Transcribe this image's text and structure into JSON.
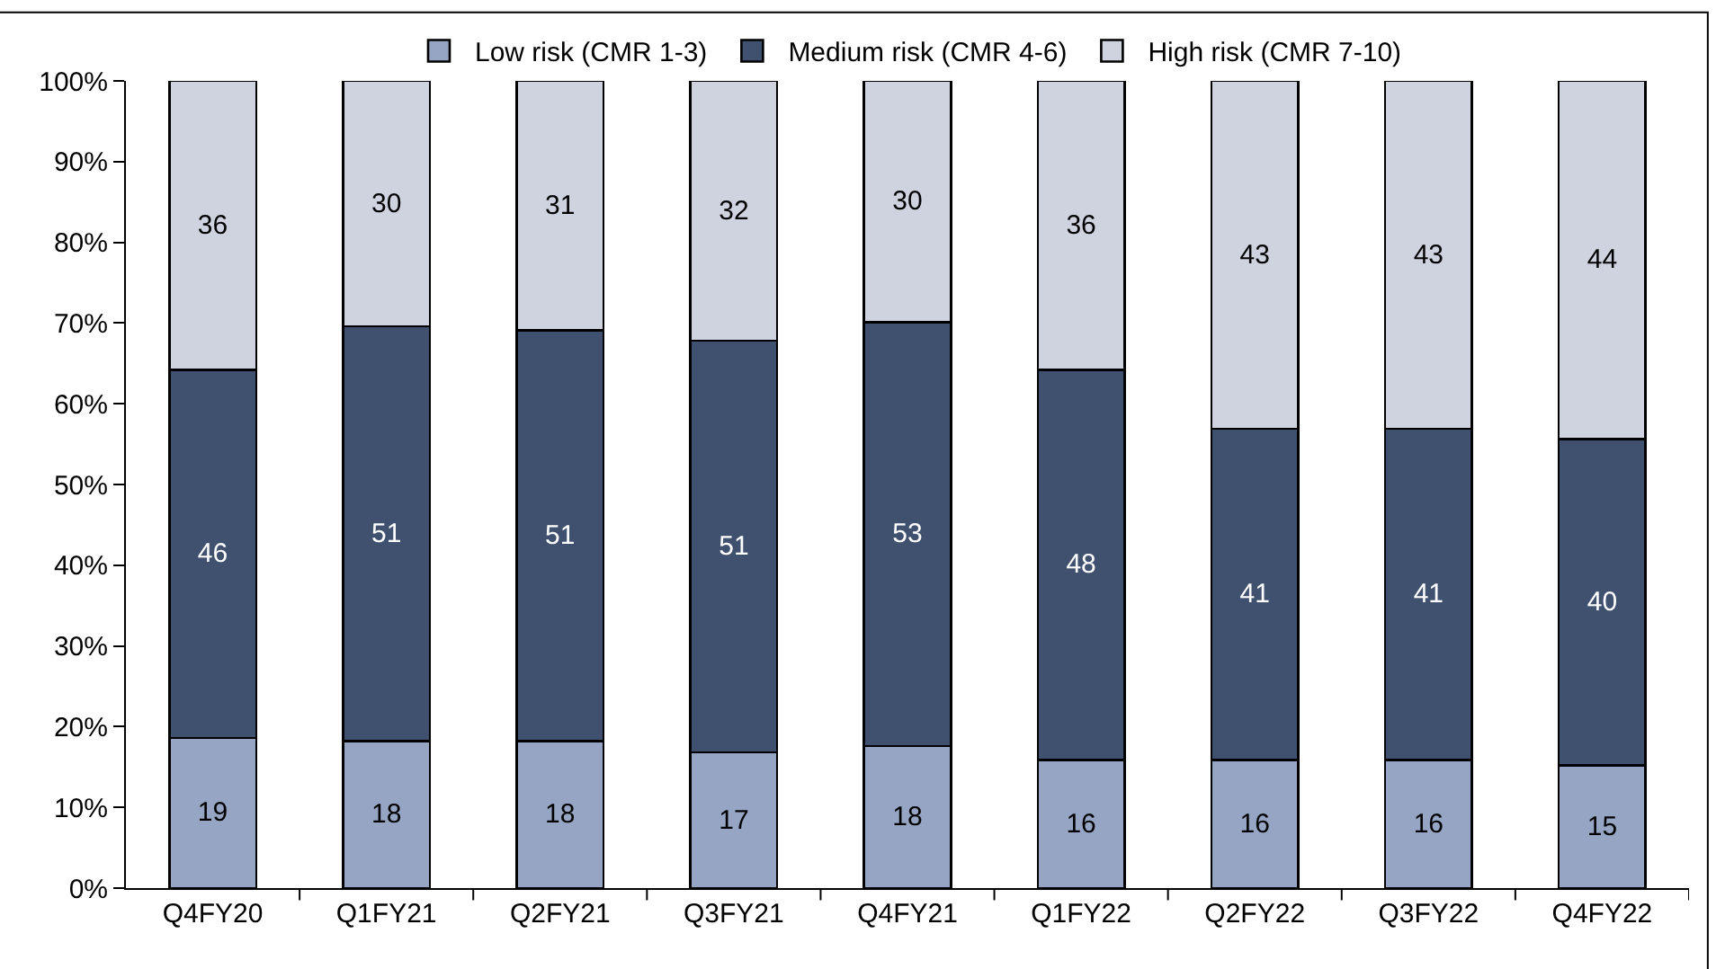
{
  "chart_data": {
    "type": "bar",
    "stacked": true,
    "categories": [
      "Q4FY20",
      "Q1FY21",
      "Q2FY21",
      "Q3FY21",
      "Q4FY21",
      "Q1FY22",
      "Q2FY22",
      "Q3FY22",
      "Q4FY22"
    ],
    "series": [
      {
        "name": "Low risk (CMR 1-3)",
        "color": "#95a5c3",
        "values": [
          18.6,
          18.2,
          18.2,
          16.8,
          17.6,
          15.9,
          15.9,
          15.9,
          15.2
        ],
        "value_labels": [
          "19",
          "18",
          "18",
          "17",
          "18",
          "16",
          "16",
          "16",
          "15"
        ]
      },
      {
        "name": "Medium risk (CMR 4-6)",
        "color": "#40516f",
        "values": [
          45.6,
          51.4,
          50.9,
          51.0,
          52.5,
          48.3,
          41.0,
          41.0,
          40.4
        ],
        "value_labels": [
          "46",
          "51",
          "51",
          "51",
          "53",
          "48",
          "41",
          "41",
          "40"
        ]
      },
      {
        "name": "High risk (CMR 7-10)",
        "color": "#cfd3e0",
        "values": [
          35.8,
          30.4,
          30.9,
          32.2,
          29.9,
          35.8,
          43.1,
          43.1,
          44.4
        ],
        "value_labels": [
          "36",
          "30",
          "31",
          "32",
          "30",
          "36",
          "43",
          "43",
          "44"
        ]
      }
    ],
    "ylim": [
      0,
      100
    ],
    "yticks": [
      {
        "value": 0,
        "label": "0%"
      },
      {
        "value": 10,
        "label": "10%"
      },
      {
        "value": 20,
        "label": "20%"
      },
      {
        "value": 30,
        "label": "30%"
      },
      {
        "value": 40,
        "label": "40%"
      },
      {
        "value": 50,
        "label": "50%"
      },
      {
        "value": 60,
        "label": "60%"
      },
      {
        "value": 70,
        "label": "70%"
      },
      {
        "value": 80,
        "label": "80%"
      },
      {
        "value": 90,
        "label": "90%"
      },
      {
        "value": 100,
        "label": "100%"
      }
    ],
    "legend": "top"
  }
}
